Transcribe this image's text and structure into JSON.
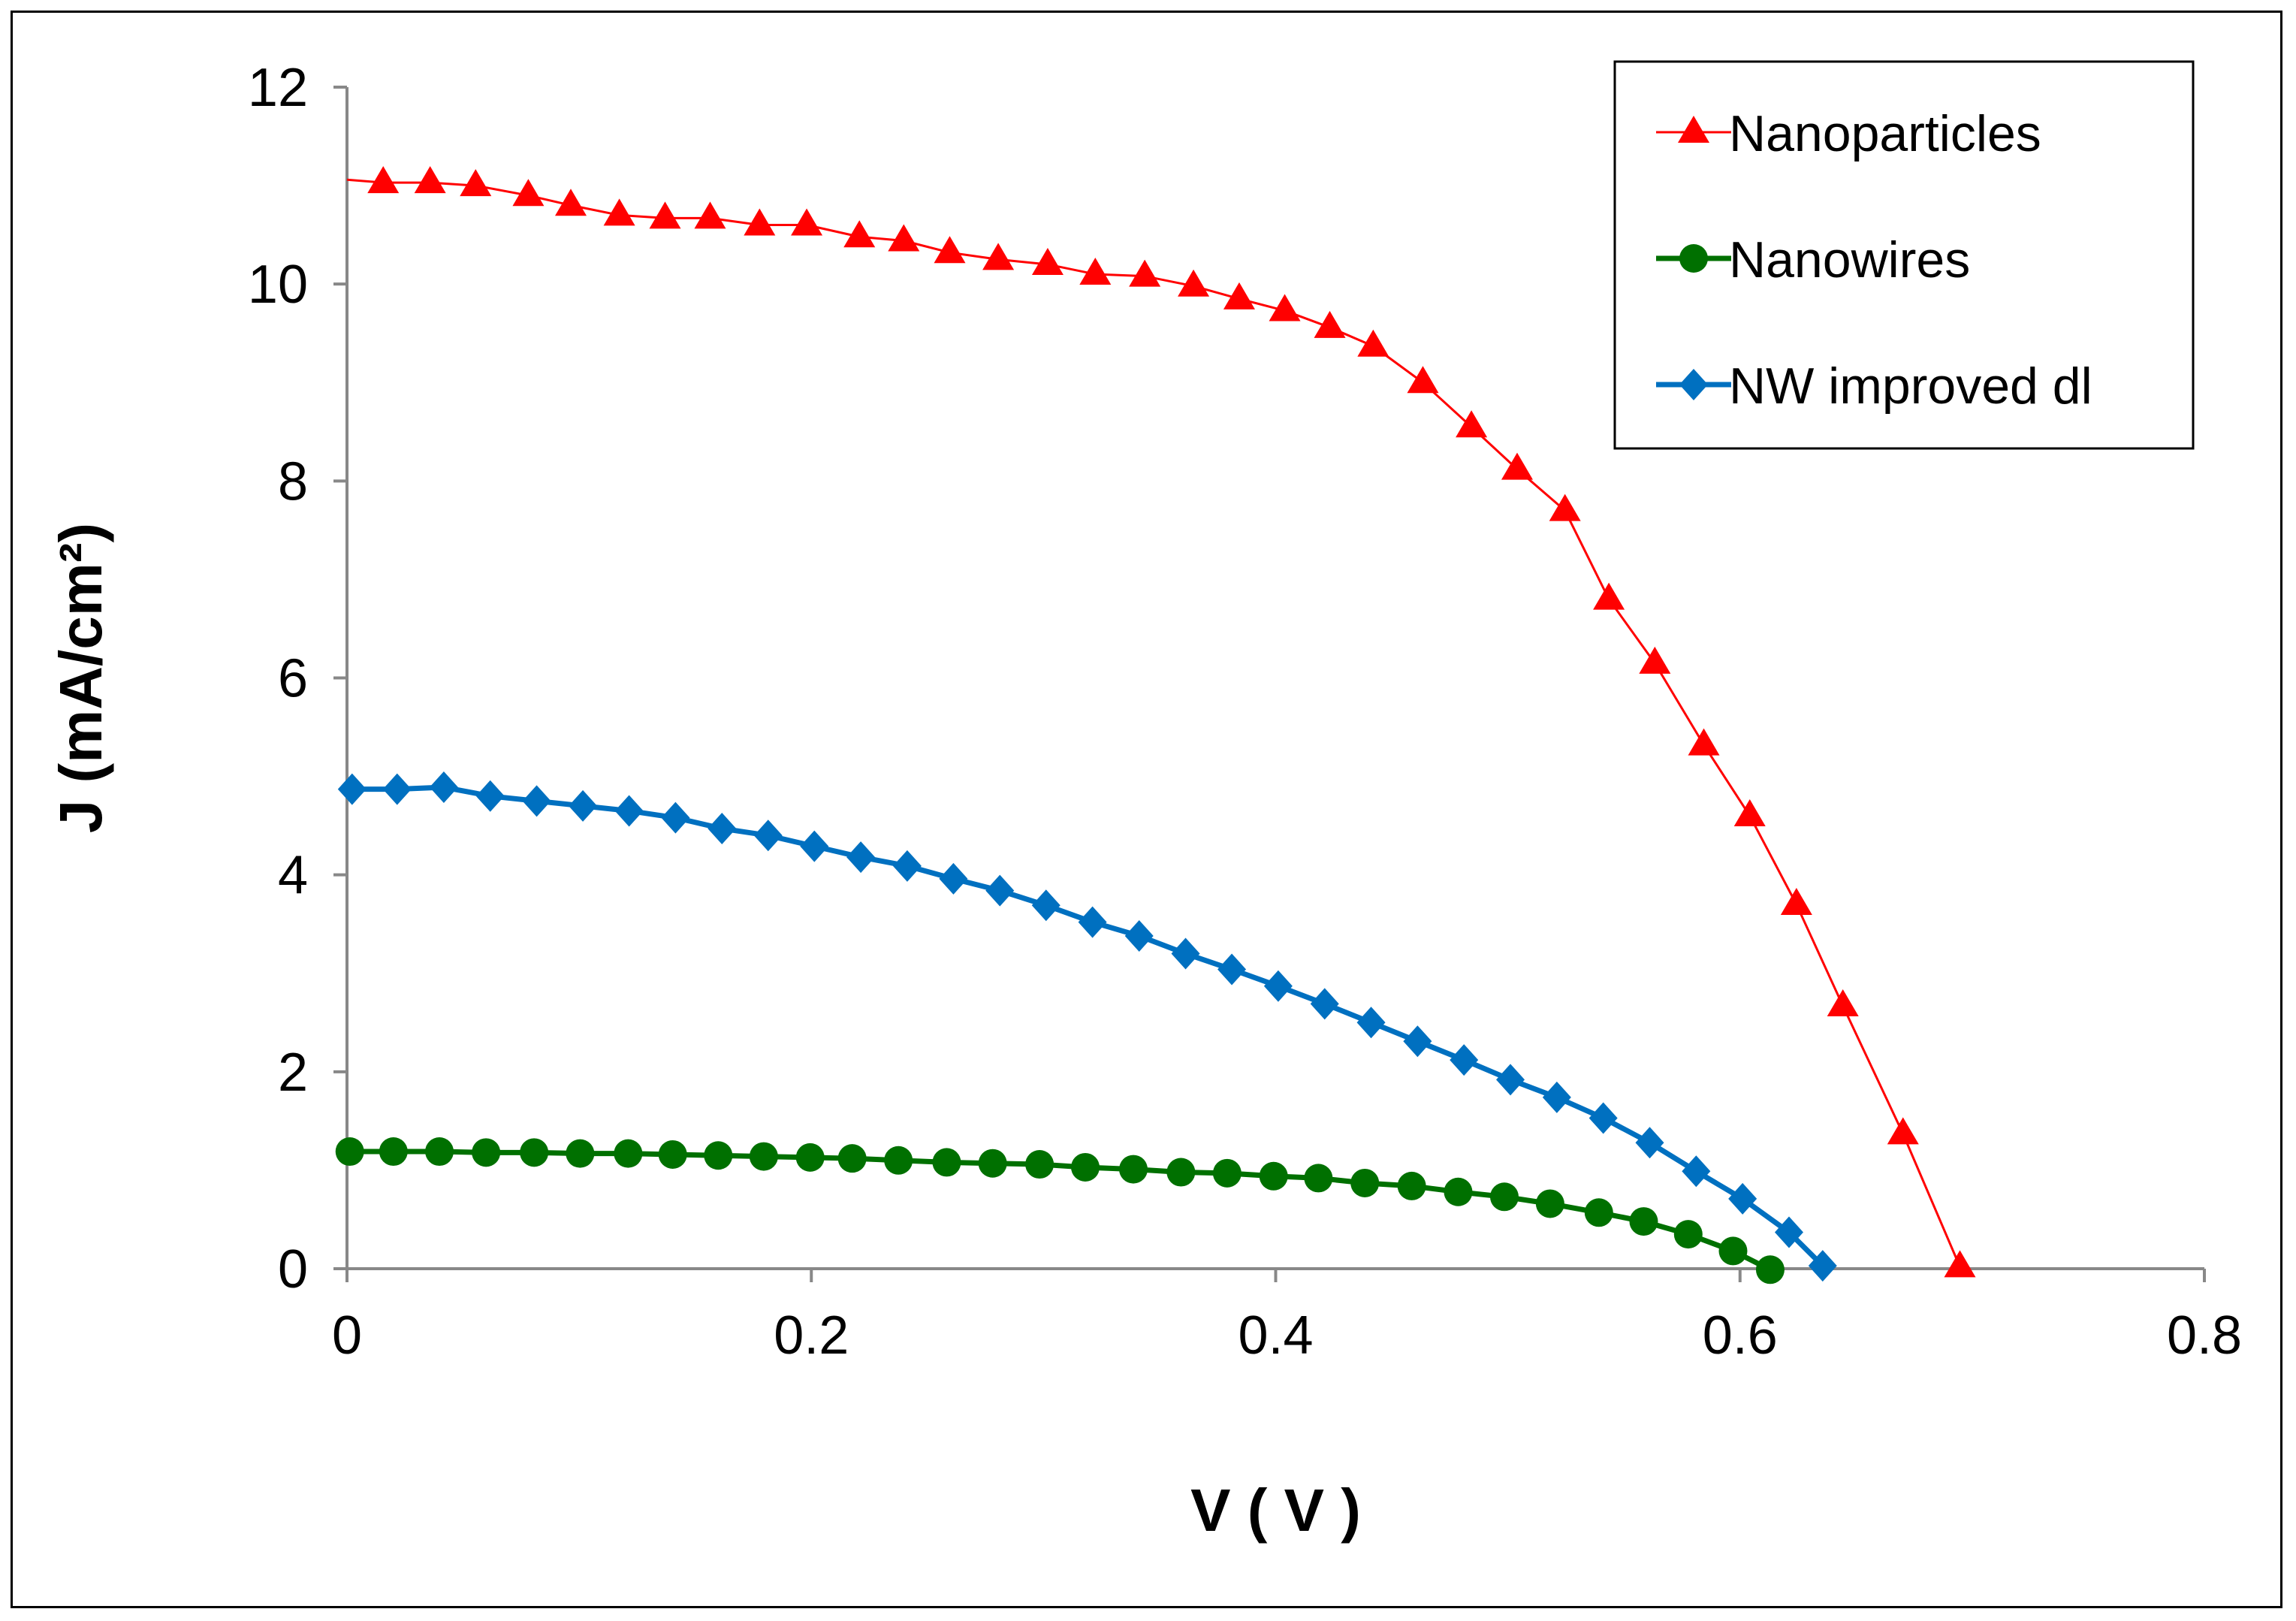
{
  "chart_data": {
    "type": "line",
    "title": "",
    "xlabel": "V ( V )",
    "ylabel": "J (mA/cm²)",
    "xlim": [
      0,
      0.8
    ],
    "ylim": [
      0,
      12
    ],
    "xticks": [
      0,
      0.2,
      0.4,
      0.6,
      0.8
    ],
    "xtick_labels": [
      "0",
      "0.2",
      "0.4",
      "0.6",
      "0.8"
    ],
    "yticks": [
      0,
      2,
      4,
      6,
      8,
      10,
      12
    ],
    "ytick_labels": [
      "0",
      "2",
      "4",
      "6",
      "8",
      "10",
      "12"
    ],
    "grid": false,
    "legend_position": "top-right",
    "series": [
      {
        "name": "Nanoparticles",
        "color": "#ff0000",
        "marker": "triangle",
        "line_start": [
          0,
          11.06
        ],
        "x": [
          0.0156,
          0.0358,
          0.0554,
          0.0781,
          0.0964,
          0.1173,
          0.137,
          0.1564,
          0.1777,
          0.198,
          0.2207,
          0.2398,
          0.2596,
          0.2805,
          0.3018,
          0.3223,
          0.3436,
          0.3646,
          0.3843,
          0.4039,
          0.4233,
          0.442,
          0.4634,
          0.4843,
          0.504,
          0.5246,
          0.5435,
          0.5633,
          0.5844,
          0.6042,
          0.6243,
          0.6443,
          0.6702,
          0.6947
        ],
        "y": [
          11.03,
          11.03,
          11.0,
          10.9,
          10.8,
          10.7,
          10.67,
          10.67,
          10.6,
          10.6,
          10.48,
          10.44,
          10.32,
          10.25,
          10.2,
          10.1,
          10.08,
          9.98,
          9.85,
          9.73,
          9.56,
          9.37,
          9.0,
          8.55,
          8.12,
          7.7,
          6.8,
          6.15,
          5.32,
          4.6,
          3.7,
          2.67,
          1.37,
          0.02
        ]
      },
      {
        "name": "Nanowires",
        "color": "#007000",
        "marker": "circle",
        "x": [
          0.0012,
          0.02,
          0.0398,
          0.0599,
          0.0806,
          0.1004,
          0.1211,
          0.1403,
          0.1599,
          0.1795,
          0.1995,
          0.2176,
          0.2375,
          0.2583,
          0.2781,
          0.2983,
          0.318,
          0.3387,
          0.3592,
          0.3791,
          0.3991,
          0.4184,
          0.4384,
          0.4586,
          0.4786,
          0.4985,
          0.5182,
          0.5392,
          0.5585,
          0.5777,
          0.597,
          0.613
        ],
        "y": [
          1.19,
          1.19,
          1.19,
          1.18,
          1.18,
          1.17,
          1.17,
          1.16,
          1.15,
          1.14,
          1.13,
          1.12,
          1.1,
          1.08,
          1.07,
          1.06,
          1.03,
          1.01,
          0.98,
          0.97,
          0.94,
          0.92,
          0.87,
          0.84,
          0.78,
          0.73,
          0.66,
          0.57,
          0.48,
          0.35,
          0.18,
          -0.01
        ]
      },
      {
        "name": "NW improved dl",
        "color": "#0070c0",
        "marker": "diamond",
        "x": [
          0.0022,
          0.0216,
          0.0417,
          0.0617,
          0.0817,
          0.1016,
          0.1215,
          0.1415,
          0.1615,
          0.1814,
          0.2013,
          0.2213,
          0.2413,
          0.2612,
          0.2812,
          0.3011,
          0.3211,
          0.3412,
          0.3612,
          0.3811,
          0.4011,
          0.4211,
          0.4411,
          0.4611,
          0.4811,
          0.5011,
          0.5211,
          0.5411,
          0.5611,
          0.5811,
          0.6011,
          0.6211,
          0.6356
        ],
        "y": [
          4.87,
          4.87,
          4.89,
          4.8,
          4.75,
          4.7,
          4.65,
          4.58,
          4.47,
          4.4,
          4.29,
          4.18,
          4.09,
          3.96,
          3.84,
          3.69,
          3.52,
          3.38,
          3.2,
          3.04,
          2.87,
          2.69,
          2.5,
          2.31,
          2.12,
          1.92,
          1.74,
          1.53,
          1.28,
          0.99,
          0.71,
          0.37,
          0.03
        ]
      }
    ]
  }
}
